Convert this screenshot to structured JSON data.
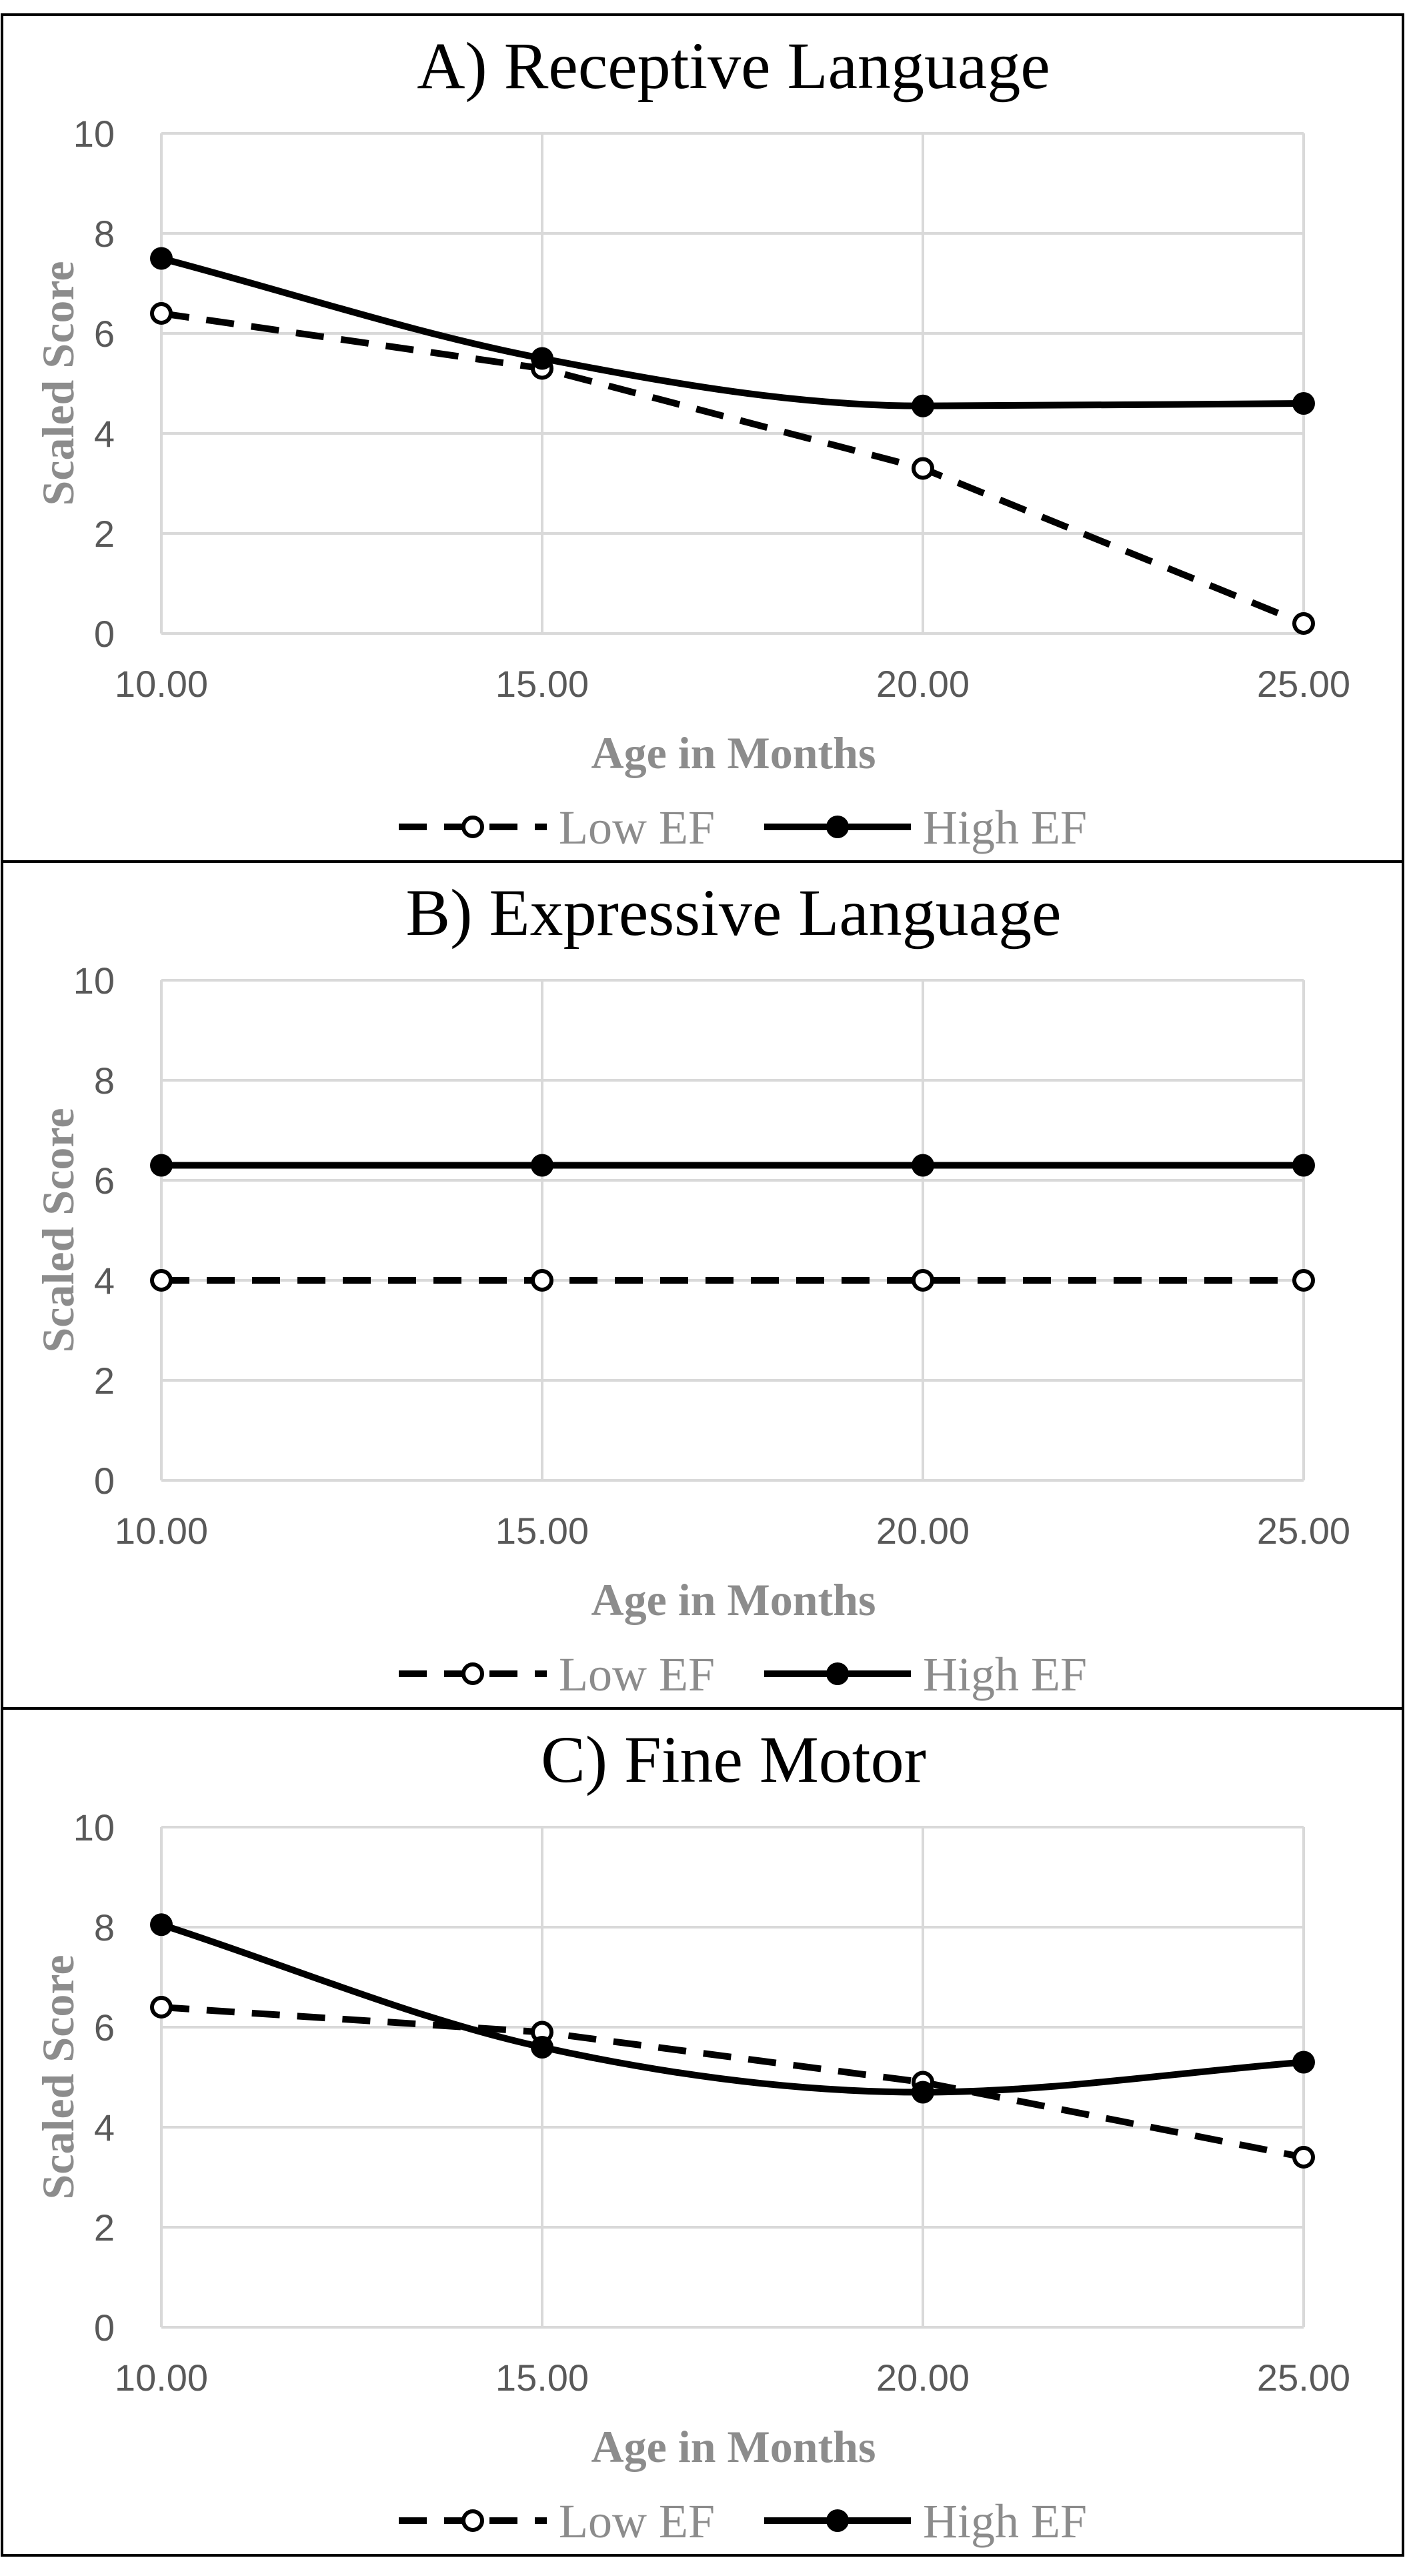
{
  "colors": {
    "grid": "#d9d9d9",
    "series_line": "#000000",
    "axis_text": "#595959",
    "axis_title": "#8c8c8c",
    "legend_text": "#8c8c8c",
    "panel_border": "#000000",
    "background": "#ffffff"
  },
  "chart_data": [
    {
      "type": "line",
      "title": "A) Receptive Language",
      "xlabel": "Age in Months",
      "ylabel": "Scaled Score",
      "x": [
        10,
        15,
        20,
        25
      ],
      "x_tick_labels": [
        "10.00",
        "15.00",
        "20.00",
        "25.00"
      ],
      "xlim": [
        10,
        25
      ],
      "ylim": [
        0,
        10
      ],
      "y_ticks": [
        0,
        2,
        4,
        6,
        8,
        10
      ],
      "grid": true,
      "legend_position": "bottom",
      "series": [
        {
          "name": "Low EF",
          "values": [
            6.4,
            5.3,
            3.3,
            0.2
          ],
          "style": "dashed",
          "marker": "open-circle",
          "smooth": false
        },
        {
          "name": "High EF",
          "values": [
            7.5,
            5.5,
            4.55,
            4.6
          ],
          "style": "solid",
          "marker": "filled-circle",
          "smooth": true
        }
      ]
    },
    {
      "type": "line",
      "title": "B) Expressive Language",
      "xlabel": "Age in Months",
      "ylabel": "Scaled Score",
      "x": [
        10,
        15,
        20,
        25
      ],
      "x_tick_labels": [
        "10.00",
        "15.00",
        "20.00",
        "25.00"
      ],
      "xlim": [
        10,
        25
      ],
      "ylim": [
        0,
        10
      ],
      "y_ticks": [
        0,
        2,
        4,
        6,
        8,
        10
      ],
      "grid": true,
      "legend_position": "bottom",
      "series": [
        {
          "name": "Low EF",
          "values": [
            4.0,
            4.0,
            4.0,
            4.0
          ],
          "style": "dashed",
          "marker": "open-circle",
          "smooth": false
        },
        {
          "name": "High EF",
          "values": [
            6.3,
            6.3,
            6.3,
            6.3
          ],
          "style": "solid",
          "marker": "filled-circle",
          "smooth": true
        }
      ]
    },
    {
      "type": "line",
      "title": "C) Fine Motor",
      "xlabel": "Age in Months",
      "ylabel": "Scaled Score",
      "x": [
        10,
        15,
        20,
        25
      ],
      "x_tick_labels": [
        "10.00",
        "15.00",
        "20.00",
        "25.00"
      ],
      "xlim": [
        10,
        25
      ],
      "ylim": [
        0,
        10
      ],
      "y_ticks": [
        0,
        2,
        4,
        6,
        8,
        10
      ],
      "grid": true,
      "legend_position": "bottom",
      "series": [
        {
          "name": "Low EF",
          "values": [
            6.4,
            5.9,
            4.9,
            3.4
          ],
          "style": "dashed",
          "marker": "open-circle",
          "smooth": false
        },
        {
          "name": "High EF",
          "values": [
            8.05,
            5.6,
            4.7,
            5.3
          ],
          "style": "solid",
          "marker": "filled-circle",
          "smooth": true
        }
      ]
    }
  ]
}
